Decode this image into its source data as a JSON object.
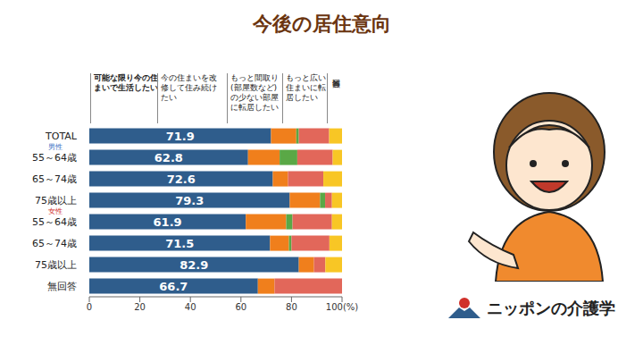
{
  "chart_data": {
    "type": "bar",
    "title": "今後の居住意向",
    "orientation": "horizontal",
    "stacked": true,
    "grid": false,
    "legend": "top",
    "categories": [
      "TOTAL",
      "男性 55～64歳",
      "65～74歳",
      "75歳以上",
      "女性 55～64歳",
      "65～74歳",
      "75歳以上",
      "無回答"
    ],
    "series": [
      {
        "name": "可能な限り今の住まいで生活したい",
        "color": "#2f5d8c",
        "data_labels": true,
        "values": [
          71.9,
          62.8,
          72.6,
          79.3,
          61.9,
          71.5,
          82.9,
          66.7
        ]
      },
      {
        "name": "今の住まいを改修して住み続けたい",
        "color": "#f07f1c",
        "values": [
          10,
          12.5,
          6,
          12,
          16,
          7.5,
          6,
          6.6
        ]
      },
      {
        "name": "もっと間取り(部屋数など)の少ない部屋に転居したい",
        "color": "#5aa846",
        "values": [
          1,
          7,
          0,
          2,
          2.5,
          1,
          0,
          0
        ]
      },
      {
        "name": "もっと広い住まいに転居したい",
        "color": "#e2675a",
        "values": [
          12,
          14,
          14,
          2.7,
          15.6,
          15,
          4.5,
          26.7
        ]
      },
      {
        "name": "無回答",
        "color": "#f8c625",
        "values": [
          5.1,
          3.7,
          7.4,
          4,
          4,
          5,
          6.6,
          0
        ]
      }
    ],
    "xlim": [
      0,
      100
    ],
    "xticks": [
      0,
      20,
      40,
      60,
      80,
      {
        "value": 100,
        "label": "100(%)"
      }
    ],
    "annotations": [
      "ニッポンの介護学"
    ]
  }
}
